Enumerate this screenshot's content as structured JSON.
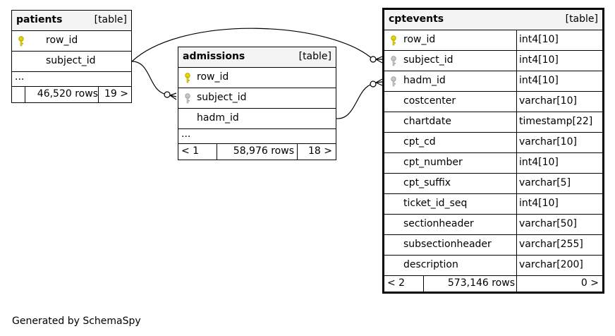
{
  "tables": {
    "patients": {
      "name": "patients",
      "kind": "[table]",
      "columns": [
        {
          "name": "row_id",
          "key": "primary"
        },
        {
          "name": "subject_id",
          "key": "none"
        }
      ],
      "more": "...",
      "footer": {
        "left": "",
        "rows": "46,520 rows",
        "right": "19 >"
      }
    },
    "admissions": {
      "name": "admissions",
      "kind": "[table]",
      "columns": [
        {
          "name": "row_id",
          "key": "primary"
        },
        {
          "name": "subject_id",
          "key": "foreign"
        },
        {
          "name": "hadm_id",
          "key": "none"
        }
      ],
      "more": "...",
      "footer": {
        "left": "< 1",
        "rows": "58,976 rows",
        "right": "18 >"
      }
    },
    "cptevents": {
      "name": "cptevents",
      "kind": "[table]",
      "columns": [
        {
          "name": "row_id",
          "type": "int4[10]",
          "key": "primary"
        },
        {
          "name": "subject_id",
          "type": "int4[10]",
          "key": "foreign"
        },
        {
          "name": "hadm_id",
          "type": "int4[10]",
          "key": "foreign"
        },
        {
          "name": "costcenter",
          "type": "varchar[10]",
          "key": "none"
        },
        {
          "name": "chartdate",
          "type": "timestamp[22]",
          "key": "none"
        },
        {
          "name": "cpt_cd",
          "type": "varchar[10]",
          "key": "none"
        },
        {
          "name": "cpt_number",
          "type": "int4[10]",
          "key": "none"
        },
        {
          "name": "cpt_suffix",
          "type": "varchar[5]",
          "key": "none"
        },
        {
          "name": "ticket_id_seq",
          "type": "int4[10]",
          "key": "none"
        },
        {
          "name": "sectionheader",
          "type": "varchar[50]",
          "key": "none"
        },
        {
          "name": "subsectionheader",
          "type": "varchar[255]",
          "key": "none"
        },
        {
          "name": "description",
          "type": "varchar[200]",
          "key": "none"
        }
      ],
      "footer": {
        "left": "< 2",
        "rows": "573,146 rows",
        "right": "0 >"
      }
    }
  },
  "colors": {
    "primary_key": "#e6d800",
    "foreign_key": "#b4b4b4",
    "header_bg": "#f4f4f4"
  },
  "icons": {
    "primary": "key-icon",
    "foreign": "foreign-key-icon"
  },
  "generated_by": "Generated by SchemaSpy"
}
